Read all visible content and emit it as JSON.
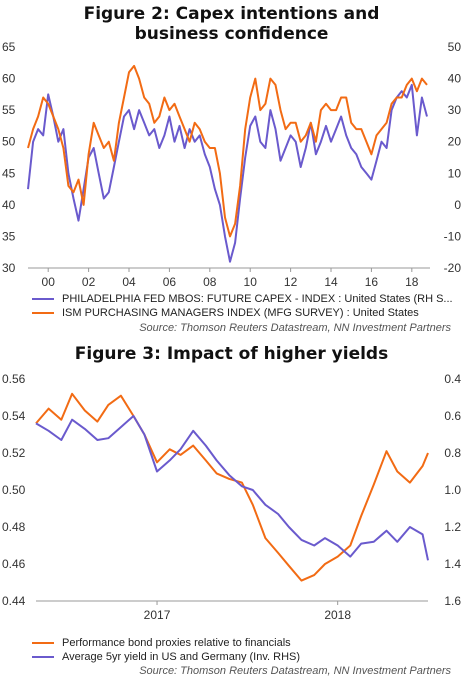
{
  "colors": {
    "orange": "#f26b14",
    "purple": "#6a5acd"
  },
  "chart_data": [
    {
      "type": "line",
      "title": "Figure 2: Capex intentions and business confidence",
      "title_lines": [
        "Figure 2: Capex intentions and",
        "business confidence"
      ],
      "x_ticks": [
        "00",
        "02",
        "04",
        "06",
        "08",
        "10",
        "12",
        "14",
        "16",
        "18"
      ],
      "x_range": [
        1999.0,
        2018.9
      ],
      "y_left_ticks": [
        "30",
        "35",
        "40",
        "45",
        "50",
        "55",
        "60",
        "65"
      ],
      "y_left_range": [
        30,
        65
      ],
      "y_right_ticks": [
        "-20",
        "-10",
        "0",
        "10",
        "20",
        "30",
        "40",
        "50"
      ],
      "y_right_range": [
        -20,
        50
      ],
      "series": [
        {
          "name": "PHILADELPHIA FED MBOS: FUTURE CAPEX - INDEX : United States (RH S...",
          "axis": "right",
          "color": "purple",
          "x": [
            1999.0,
            1999.25,
            1999.5,
            1999.75,
            2000.0,
            2000.25,
            2000.5,
            2000.75,
            2001.0,
            2001.25,
            2001.5,
            2001.75,
            2002.0,
            2002.25,
            2002.5,
            2002.75,
            2003.0,
            2003.25,
            2003.5,
            2003.75,
            2004.0,
            2004.25,
            2004.5,
            2004.75,
            2005.0,
            2005.25,
            2005.5,
            2005.75,
            2006.0,
            2006.25,
            2006.5,
            2006.75,
            2007.0,
            2007.25,
            2007.5,
            2007.75,
            2008.0,
            2008.25,
            2008.5,
            2008.75,
            2009.0,
            2009.25,
            2009.5,
            2009.75,
            2010.0,
            2010.25,
            2010.5,
            2010.75,
            2011.0,
            2011.25,
            2011.5,
            2011.75,
            2012.0,
            2012.25,
            2012.5,
            2012.75,
            2013.0,
            2013.25,
            2013.5,
            2013.75,
            2014.0,
            2014.25,
            2014.5,
            2014.75,
            2015.0,
            2015.25,
            2015.5,
            2015.75,
            2016.0,
            2016.25,
            2016.5,
            2016.75,
            2017.0,
            2017.25,
            2017.5,
            2017.75,
            2018.0,
            2018.25,
            2018.5,
            2018.75
          ],
          "y": [
            5,
            20,
            24,
            22,
            35,
            28,
            20,
            24,
            10,
            2,
            -5,
            5,
            15,
            18,
            10,
            2,
            4,
            12,
            20,
            28,
            30,
            24,
            30,
            26,
            22,
            24,
            18,
            22,
            28,
            20,
            25,
            18,
            24,
            20,
            22,
            16,
            12,
            5,
            0,
            -10,
            -18,
            -12,
            2,
            15,
            25,
            28,
            20,
            18,
            30,
            24,
            14,
            18,
            22,
            20,
            12,
            18,
            26,
            16,
            20,
            25,
            20,
            24,
            28,
            22,
            18,
            16,
            12,
            10,
            8,
            14,
            20,
            18,
            30,
            34,
            36,
            34,
            38,
            22,
            34,
            28
          ]
        },
        {
          "name": "ISM PURCHASING MANAGERS INDEX (MFG SURVEY) : United States",
          "axis": "left",
          "color": "orange",
          "x": [
            1999.0,
            1999.25,
            1999.5,
            1999.75,
            2000.0,
            2000.25,
            2000.5,
            2000.75,
            2001.0,
            2001.25,
            2001.5,
            2001.75,
            2002.0,
            2002.25,
            2002.5,
            2002.75,
            2003.0,
            2003.25,
            2003.5,
            2003.75,
            2004.0,
            2004.25,
            2004.5,
            2004.75,
            2005.0,
            2005.25,
            2005.5,
            2005.75,
            2006.0,
            2006.25,
            2006.5,
            2006.75,
            2007.0,
            2007.25,
            2007.5,
            2007.75,
            2008.0,
            2008.25,
            2008.5,
            2008.75,
            2009.0,
            2009.25,
            2009.5,
            2009.75,
            2010.0,
            2010.25,
            2010.5,
            2010.75,
            2011.0,
            2011.25,
            2011.5,
            2011.75,
            2012.0,
            2012.25,
            2012.5,
            2012.75,
            2013.0,
            2013.25,
            2013.5,
            2013.75,
            2014.0,
            2014.25,
            2014.5,
            2014.75,
            2015.0,
            2015.25,
            2015.5,
            2015.75,
            2016.0,
            2016.25,
            2016.5,
            2016.75,
            2017.0,
            2017.25,
            2017.5,
            2017.75,
            2018.0,
            2018.25,
            2018.5,
            2018.75
          ],
          "y": [
            49,
            52,
            54,
            57,
            56,
            54,
            52,
            49,
            43,
            42,
            44,
            40,
            48,
            53,
            51,
            49,
            50,
            47,
            53,
            57,
            61,
            62,
            60,
            57,
            56,
            53,
            54,
            57,
            55,
            56,
            54,
            52,
            50,
            53,
            52,
            50,
            49,
            49,
            45,
            38,
            35,
            37,
            43,
            52,
            57,
            60,
            55,
            56,
            60,
            59,
            55,
            52,
            53,
            53,
            50,
            51,
            53,
            50,
            55,
            56,
            55,
            55,
            57,
            57,
            53,
            52,
            52,
            50,
            48,
            51,
            52,
            53,
            56,
            57,
            57,
            59,
            60,
            58,
            60,
            59
          ]
        }
      ]
    },
    {
      "type": "line",
      "title": "Figure 3: Impact of higher yields",
      "x_ticks": [
        "2017",
        "2018"
      ],
      "x_range": [
        2016.33,
        2018.5
      ],
      "y_left_ticks": [
        "0.44",
        "0.46",
        "0.48",
        "0.50",
        "0.52",
        "0.54",
        "0.56"
      ],
      "y_left_range": [
        0.44,
        0.56
      ],
      "y_right_ticks": [
        "0.4",
        "0.6",
        "0.8",
        "1.0",
        "1.2",
        "1.4",
        "1.6"
      ],
      "y_right_range": [
        0.4,
        1.6
      ],
      "y_right_inverted": true,
      "series": [
        {
          "name": "Performance bond proxies relative to financials",
          "axis": "left",
          "color": "orange",
          "x": [
            2016.33,
            2016.4,
            2016.47,
            2016.53,
            2016.6,
            2016.67,
            2016.73,
            2016.8,
            2016.87,
            2016.93,
            2017.0,
            2017.07,
            2017.13,
            2017.2,
            2017.27,
            2017.33,
            2017.4,
            2017.47,
            2017.53,
            2017.6,
            2017.67,
            2017.73,
            2017.8,
            2017.87,
            2017.93,
            2018.0,
            2018.07,
            2018.13,
            2018.2,
            2018.27,
            2018.33,
            2018.4,
            2018.47,
            2018.5
          ],
          "y": [
            0.536,
            0.544,
            0.538,
            0.552,
            0.543,
            0.537,
            0.546,
            0.551,
            0.54,
            0.53,
            0.515,
            0.522,
            0.519,
            0.524,
            0.516,
            0.509,
            0.506,
            0.504,
            0.492,
            0.474,
            0.466,
            0.459,
            0.451,
            0.454,
            0.46,
            0.464,
            0.47,
            0.486,
            0.503,
            0.521,
            0.51,
            0.504,
            0.513,
            0.52
          ]
        },
        {
          "name": "Average 5yr yield in US and Germany (Inv. RHS)",
          "axis": "right",
          "color": "purple",
          "x": [
            2016.33,
            2016.4,
            2016.47,
            2016.53,
            2016.6,
            2016.67,
            2016.73,
            2016.8,
            2016.87,
            2016.93,
            2017.0,
            2017.07,
            2017.13,
            2017.2,
            2017.27,
            2017.33,
            2017.4,
            2017.47,
            2017.53,
            2017.6,
            2017.67,
            2017.73,
            2017.8,
            2017.87,
            2017.93,
            2018.0,
            2018.07,
            2018.13,
            2018.2,
            2018.27,
            2018.33,
            2018.4,
            2018.47,
            2018.5
          ],
          "y": [
            0.64,
            0.68,
            0.73,
            0.62,
            0.67,
            0.73,
            0.72,
            0.66,
            0.6,
            0.7,
            0.9,
            0.84,
            0.78,
            0.68,
            0.76,
            0.84,
            0.92,
            0.98,
            1.0,
            1.08,
            1.13,
            1.2,
            1.27,
            1.3,
            1.26,
            1.3,
            1.36,
            1.29,
            1.28,
            1.22,
            1.28,
            1.2,
            1.24,
            1.38
          ]
        }
      ]
    }
  ],
  "text": {
    "fig2_source": "Source: Thomson Reuters Datastream, NN Investment Partners",
    "fig3_source": "Source: Thomson Reuters Datastream, NN Investment Partners"
  }
}
